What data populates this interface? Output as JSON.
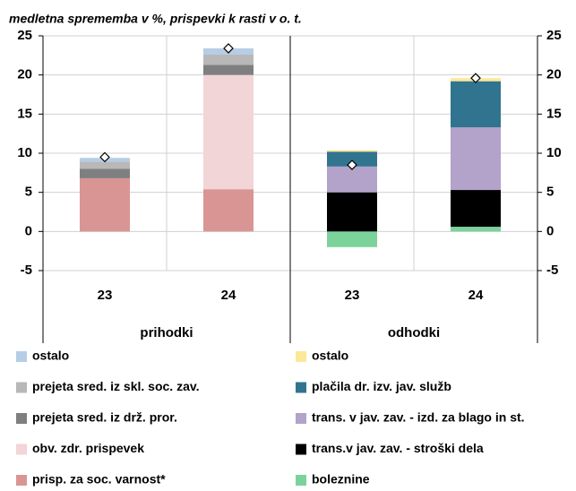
{
  "chart_data": {
    "type": "stacked_bar",
    "subtitle": "medletna sprememba v %, prispevki k rasti v o. t.",
    "groups": [
      {
        "name": "prihodki",
        "categories": [
          "23",
          "24"
        ]
      },
      {
        "name": "odhodki",
        "categories": [
          "23",
          "24"
        ]
      }
    ],
    "series": [
      {
        "name": "ostalo",
        "color": "#b6cde6",
        "values": [
          0.5,
          0.8,
          null,
          null
        ]
      },
      {
        "name": "prejeta sred. iz skl. soc. zav.",
        "color": "#b8b8b8",
        "values": [
          0.9,
          1.3,
          null,
          null
        ]
      },
      {
        "name": "prejeta sred. iz drž. pror.",
        "color": "#7f7f7f",
        "values": [
          1.2,
          1.3,
          null,
          null
        ]
      },
      {
        "name": "obv. zdr. prispevek",
        "color": "#f2d5d7",
        "values": [
          0,
          14.6,
          null,
          null
        ]
      },
      {
        "name": "prisp. za soc. varnost*",
        "color": "#d99594",
        "values": [
          6.8,
          5.4,
          null,
          null
        ]
      },
      {
        "name": "ostalo",
        "color": "#fde89a",
        "values": [
          null,
          null,
          0.2,
          0.4
        ]
      },
      {
        "name": "plačila dr. izv. jav. služb",
        "color": "#31748f",
        "values": [
          null,
          null,
          1.9,
          5.9
        ]
      },
      {
        "name": "trans. v jav. zav. - izd. za blago in st.",
        "color": "#b3a2c9",
        "values": [
          null,
          null,
          3.3,
          8.0
        ]
      },
      {
        "name": "trans.v jav. zav. - stroški dela",
        "color": "#000000",
        "values": [
          null,
          null,
          5.0,
          4.7
        ]
      },
      {
        "name": "boleznine",
        "color": "#7bd39b",
        "values": [
          null,
          null,
          -2.0,
          0.6
        ]
      }
    ],
    "totals": [
      9.5,
      23.4,
      8.5,
      19.6
    ],
    "ylim": [
      -5,
      25
    ],
    "yticks": [
      -5,
      0,
      5,
      10,
      15,
      20,
      25
    ],
    "grid": true
  }
}
